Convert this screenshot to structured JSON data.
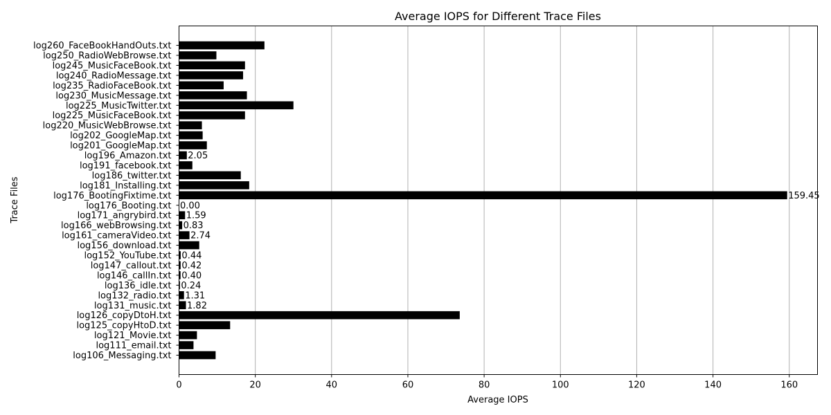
{
  "chart_data": {
    "type": "bar",
    "orientation": "horizontal",
    "title": "Average IOPS for Different Trace Files",
    "xlabel": "Average IOPS",
    "ylabel": "Trace Files",
    "xlim": [
      0,
      167.4
    ],
    "xticks": [
      0,
      20,
      40,
      60,
      80,
      100,
      120,
      140,
      160
    ],
    "grid": "vertical",
    "bar_color": "#000000",
    "categories": [
      "log106_Messaging.txt",
      "log111_email.txt",
      "log121_Movie.txt",
      "log125_copyHtoD.txt",
      "log126_copyDtoH.txt",
      "log131_music.txt",
      "log132_radio.txt",
      "log136_idle.txt",
      "log146_callIn.txt",
      "log147_callout.txt",
      "log152_YouTube.txt",
      "log156_download.txt",
      "log161_cameraVideo.txt",
      "log166_webBrowsing.txt",
      "log171_angrybird.txt",
      "log176_Booting.txt",
      "log176_BootingFixtime.txt",
      "log181_Installing.txt",
      "log186_twitter.txt",
      "log191_facebook.txt",
      "log196_Amazon.txt",
      "log201_GoogleMap.txt",
      "log202_GoogleMap.txt",
      "log220_MusicWebBrowse.txt",
      "log225_MusicFaceBook.txt",
      "log225_MusicTwitter.txt",
      "log230_MusicMessage.txt",
      "log235_RadioFaceBook.txt",
      "log240_RadioMessage.txt",
      "log245_MusicFaceBook.txt",
      "log250_RadioWebBrowse.txt",
      "log260_FaceBookHandOuts.txt"
    ],
    "values": [
      9.6,
      3.8,
      4.7,
      13.4,
      73.6,
      1.82,
      1.31,
      0.24,
      0.4,
      0.42,
      0.44,
      5.3,
      2.74,
      0.83,
      1.59,
      0.0,
      159.45,
      18.4,
      16.2,
      3.5,
      2.05,
      7.3,
      6.2,
      6.0,
      17.3,
      30.0,
      17.8,
      11.7,
      16.8,
      17.3,
      9.8,
      22.4
    ],
    "labels": [
      "",
      "",
      "",
      "",
      "",
      "1.82",
      "1.31",
      "0.24",
      "0.40",
      "0.42",
      "0.44",
      "",
      "2.74",
      "0.83",
      "1.59",
      "0.00",
      "159.45",
      "",
      "",
      "",
      "2.05",
      "",
      "",
      "",
      "",
      "",
      "",
      "",
      "",
      "",
      "",
      ""
    ]
  }
}
